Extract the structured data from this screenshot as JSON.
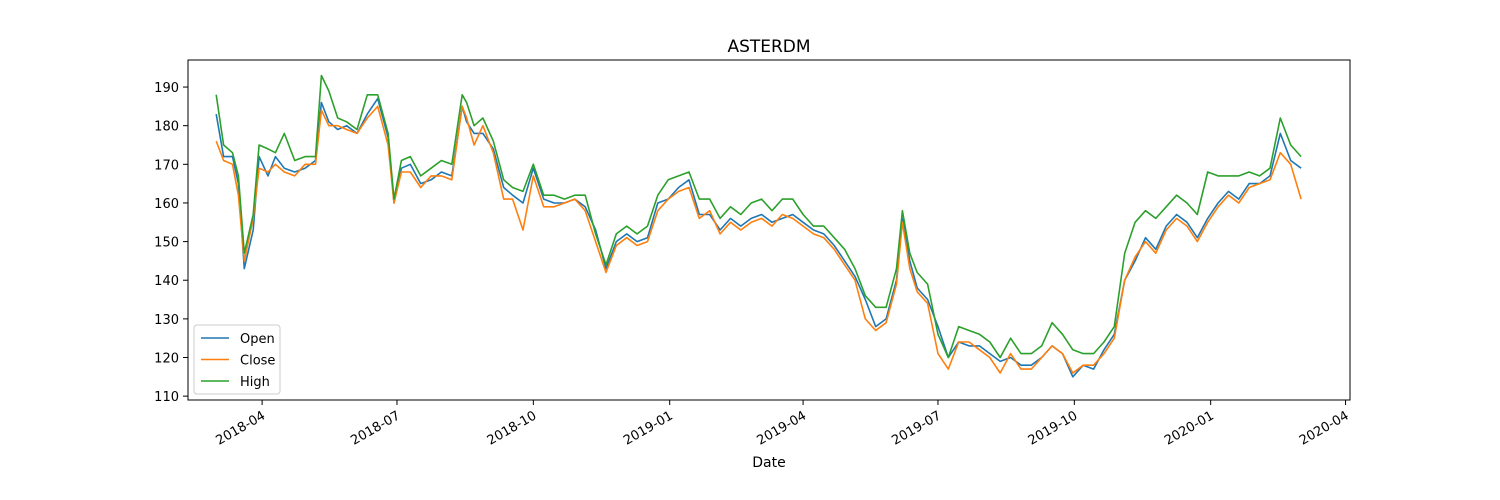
{
  "chart_data": {
    "type": "line",
    "title": "ASTERDM",
    "xlabel": "Date",
    "ylabel": "",
    "xlim": [
      "2018-02-10",
      "2020-04-04"
    ],
    "ylim": [
      109,
      197
    ],
    "x_ticks": [
      "2018-04-01",
      "2018-07-01",
      "2018-10-01",
      "2019-01-01",
      "2019-04-01",
      "2019-07-01",
      "2019-10-01",
      "2020-01-01",
      "2020-04-01"
    ],
    "x_tick_labels": [
      "2018-04",
      "2018-07",
      "2018-10",
      "2019-01",
      "2019-04",
      "2019-07",
      "2019-10",
      "2020-01",
      "2020-04"
    ],
    "y_ticks": [
      110,
      120,
      130,
      140,
      150,
      160,
      170,
      180,
      190
    ],
    "grid": false,
    "legend_position": "lower-left",
    "x": [
      "2018-03-01",
      "2018-03-06",
      "2018-03-12",
      "2018-03-16",
      "2018-03-20",
      "2018-03-26",
      "2018-03-30",
      "2018-04-05",
      "2018-04-10",
      "2018-04-16",
      "2018-04-23",
      "2018-04-30",
      "2018-05-07",
      "2018-05-11",
      "2018-05-16",
      "2018-05-22",
      "2018-05-28",
      "2018-06-04",
      "2018-06-11",
      "2018-06-18",
      "2018-06-25",
      "2018-06-29",
      "2018-07-04",
      "2018-07-10",
      "2018-07-17",
      "2018-07-24",
      "2018-07-31",
      "2018-08-07",
      "2018-08-14",
      "2018-08-17",
      "2018-08-22",
      "2018-08-28",
      "2018-09-04",
      "2018-09-11",
      "2018-09-17",
      "2018-09-24",
      "2018-10-01",
      "2018-10-08",
      "2018-10-15",
      "2018-10-22",
      "2018-10-29",
      "2018-11-05",
      "2018-11-12",
      "2018-11-19",
      "2018-11-26",
      "2018-12-03",
      "2018-12-10",
      "2018-12-17",
      "2018-12-24",
      "2018-12-31",
      "2019-01-07",
      "2019-01-14",
      "2019-01-21",
      "2019-01-28",
      "2019-02-04",
      "2019-02-11",
      "2019-02-18",
      "2019-02-25",
      "2019-03-04",
      "2019-03-11",
      "2019-03-18",
      "2019-03-25",
      "2019-04-01",
      "2019-04-08",
      "2019-04-15",
      "2019-04-22",
      "2019-04-29",
      "2019-05-06",
      "2019-05-13",
      "2019-05-20",
      "2019-05-27",
      "2019-06-03",
      "2019-06-07",
      "2019-06-12",
      "2019-06-17",
      "2019-06-24",
      "2019-07-01",
      "2019-07-08",
      "2019-07-15",
      "2019-07-22",
      "2019-07-29",
      "2019-08-05",
      "2019-08-12",
      "2019-08-19",
      "2019-08-26",
      "2019-09-02",
      "2019-09-09",
      "2019-09-16",
      "2019-09-23",
      "2019-09-30",
      "2019-10-07",
      "2019-10-14",
      "2019-10-21",
      "2019-10-28",
      "2019-11-04",
      "2019-11-11",
      "2019-11-18",
      "2019-11-25",
      "2019-12-02",
      "2019-12-09",
      "2019-12-16",
      "2019-12-23",
      "2019-12-30",
      "2020-01-06",
      "2020-01-13",
      "2020-01-20",
      "2020-01-27",
      "2020-02-03",
      "2020-02-10",
      "2020-02-17",
      "2020-02-24",
      "2020-03-02"
    ],
    "series": [
      {
        "name": "Open",
        "color": "#1f77b4",
        "values": [
          183,
          172,
          172,
          165,
          143,
          153,
          172,
          167,
          172,
          169,
          168,
          169,
          171,
          186,
          181,
          179,
          180,
          178,
          183,
          187,
          177,
          160,
          169,
          170,
          165,
          166,
          168,
          167,
          185,
          181,
          178,
          178,
          174,
          164,
          162,
          160,
          169,
          161,
          160,
          160,
          161,
          159,
          153,
          143,
          150,
          152,
          150,
          151,
          160,
          161,
          164,
          166,
          157,
          157,
          153,
          156,
          154,
          156,
          157,
          155,
          156,
          157,
          155,
          153,
          152,
          149,
          145,
          141,
          135,
          128,
          130,
          140,
          156,
          145,
          138,
          135,
          128,
          120,
          124,
          123,
          123,
          121,
          119,
          120,
          118,
          118,
          120,
          123,
          121,
          115,
          118,
          117,
          122,
          126,
          140,
          145,
          151,
          148,
          154,
          157,
          155,
          151,
          156,
          160,
          163,
          161,
          165,
          165,
          167,
          178,
          171,
          169
        ]
      },
      {
        "name": "Close",
        "color": "#ff7f0e",
        "values": [
          176,
          171,
          170,
          162,
          145,
          156,
          169,
          168,
          170,
          168,
          167,
          170,
          170,
          184,
          180,
          180,
          179,
          178,
          182,
          185,
          175,
          160,
          168,
          168,
          164,
          167,
          167,
          166,
          185,
          182,
          175,
          180,
          173,
          161,
          161,
          153,
          167,
          159,
          159,
          160,
          161,
          158,
          150,
          142,
          149,
          151,
          149,
          150,
          158,
          161,
          163,
          164,
          156,
          158,
          152,
          155,
          153,
          155,
          156,
          154,
          157,
          156,
          154,
          152,
          151,
          148,
          144,
          140,
          130,
          127,
          129,
          139,
          155,
          143,
          137,
          134,
          121,
          117,
          124,
          124,
          122,
          120,
          116,
          121,
          117,
          117,
          120,
          123,
          121,
          116,
          118,
          118,
          121,
          125,
          140,
          146,
          150,
          147,
          153,
          156,
          154,
          150,
          155,
          159,
          162,
          160,
          164,
          165,
          166,
          173,
          170,
          161
        ]
      },
      {
        "name": "High",
        "color": "#2ca02c",
        "values": [
          188,
          175,
          173,
          167,
          147,
          157,
          175,
          174,
          173,
          178,
          171,
          172,
          172,
          193,
          189,
          182,
          181,
          179,
          188,
          188,
          178,
          161,
          171,
          172,
          167,
          169,
          171,
          170,
          188,
          186,
          180,
          182,
          176,
          166,
          164,
          163,
          170,
          162,
          162,
          161,
          162,
          162,
          152,
          144,
          152,
          154,
          152,
          154,
          162,
          166,
          167,
          168,
          161,
          161,
          156,
          159,
          157,
          160,
          161,
          158,
          161,
          161,
          157,
          154,
          154,
          151,
          148,
          143,
          136,
          133,
          133,
          143,
          158,
          147,
          142,
          139,
          126,
          120,
          128,
          127,
          126,
          124,
          120,
          125,
          121,
          121,
          123,
          129,
          126,
          122,
          121,
          121,
          124,
          128,
          147,
          155,
          158,
          156,
          159,
          162,
          160,
          157,
          168,
          167,
          167,
          167,
          168,
          167,
          169,
          182,
          175,
          172
        ]
      }
    ]
  }
}
